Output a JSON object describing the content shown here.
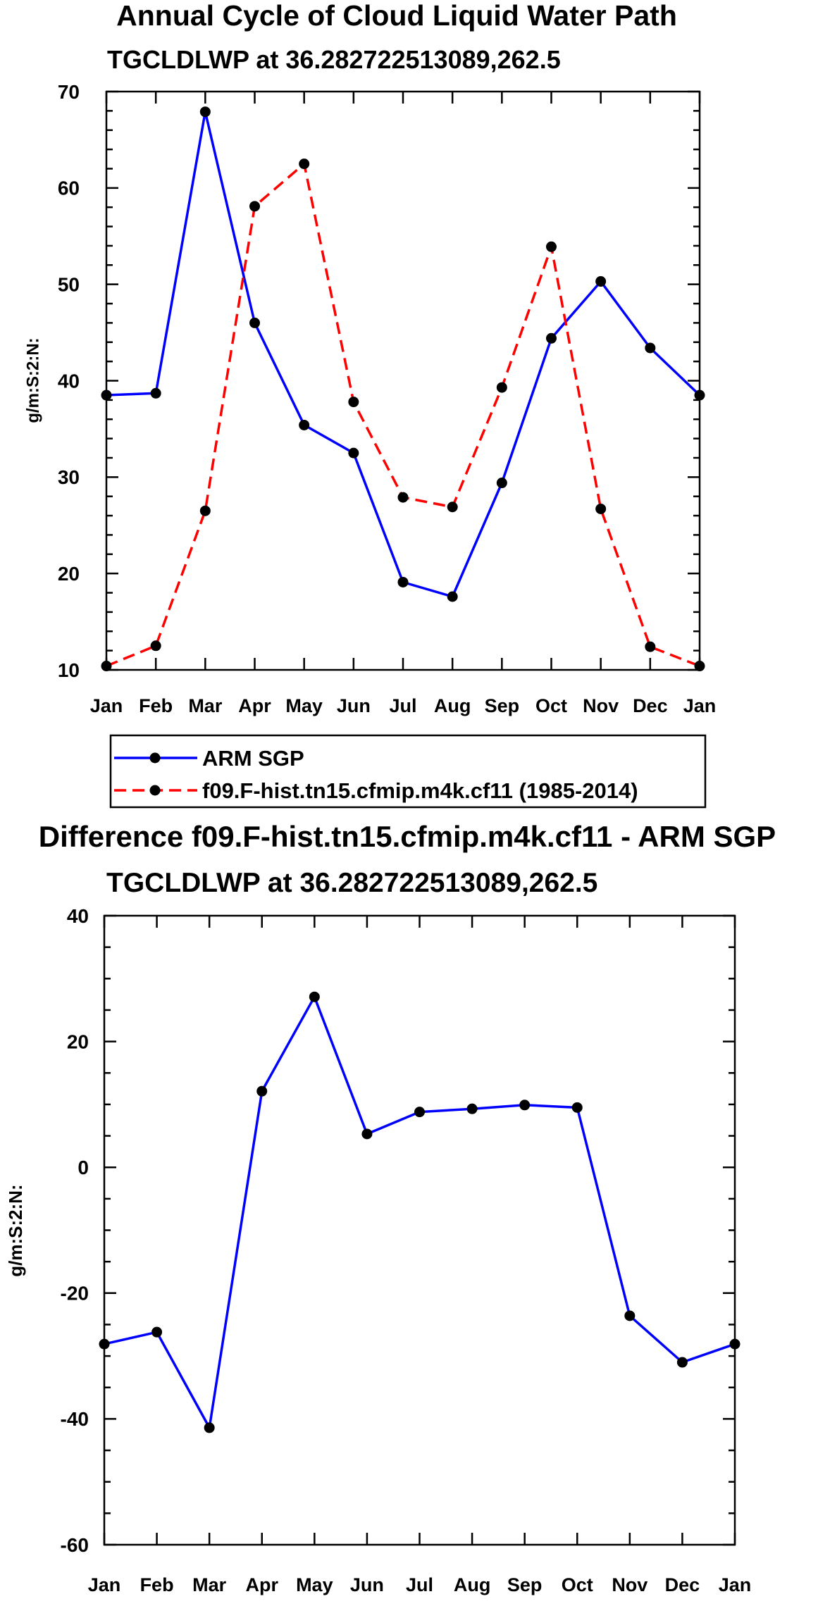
{
  "chart_data": [
    {
      "type": "line",
      "title": "Annual Cycle of Cloud Liquid Water Path",
      "subtitle": "TGCLDLWP at 36.282722513089,262.5",
      "ylabel": "g/m:S:2:N:",
      "categories": [
        "Jan",
        "Feb",
        "Mar",
        "Apr",
        "May",
        "Jun",
        "Jul",
        "Aug",
        "Sep",
        "Oct",
        "Nov",
        "Dec",
        "Jan"
      ],
      "ylim": [
        10,
        70
      ],
      "yticks": [
        10,
        20,
        30,
        40,
        50,
        60,
        70
      ],
      "yminor": 2,
      "series": [
        {
          "name": "ARM SGP",
          "color": "#0000ff",
          "dash": false,
          "values": [
            38.5,
            38.7,
            67.9,
            46.0,
            35.4,
            32.5,
            19.1,
            17.6,
            29.4,
            44.4,
            50.3,
            43.4,
            38.5
          ]
        },
        {
          "name": "f09.F-hist.tn15.cfmip.m4k.cf11 (1985-2014)",
          "color": "#ff0000",
          "dash": true,
          "values": [
            10.4,
            12.5,
            26.5,
            58.1,
            62.5,
            37.8,
            27.9,
            26.9,
            39.3,
            53.9,
            26.7,
            12.4,
            10.4
          ]
        }
      ]
    },
    {
      "type": "line",
      "title": "Difference f09.F-hist.tn15.cfmip.m4k.cf11 - ARM SGP",
      "subtitle": "TGCLDLWP at 36.282722513089,262.5",
      "ylabel": "g/m:S:2:N:",
      "categories": [
        "Jan",
        "Feb",
        "Mar",
        "Apr",
        "May",
        "Jun",
        "Jul",
        "Aug",
        "Sep",
        "Oct",
        "Nov",
        "Dec",
        "Jan"
      ],
      "ylim": [
        -60,
        40
      ],
      "yticks": [
        -60,
        -40,
        -20,
        0,
        20,
        40
      ],
      "yminor": 5,
      "color": "#0000ff",
      "values": [
        -28.1,
        -26.2,
        -41.4,
        12.1,
        27.1,
        5.3,
        8.8,
        9.3,
        9.9,
        9.5,
        -23.6,
        -31.0,
        -28.1
      ]
    }
  ]
}
